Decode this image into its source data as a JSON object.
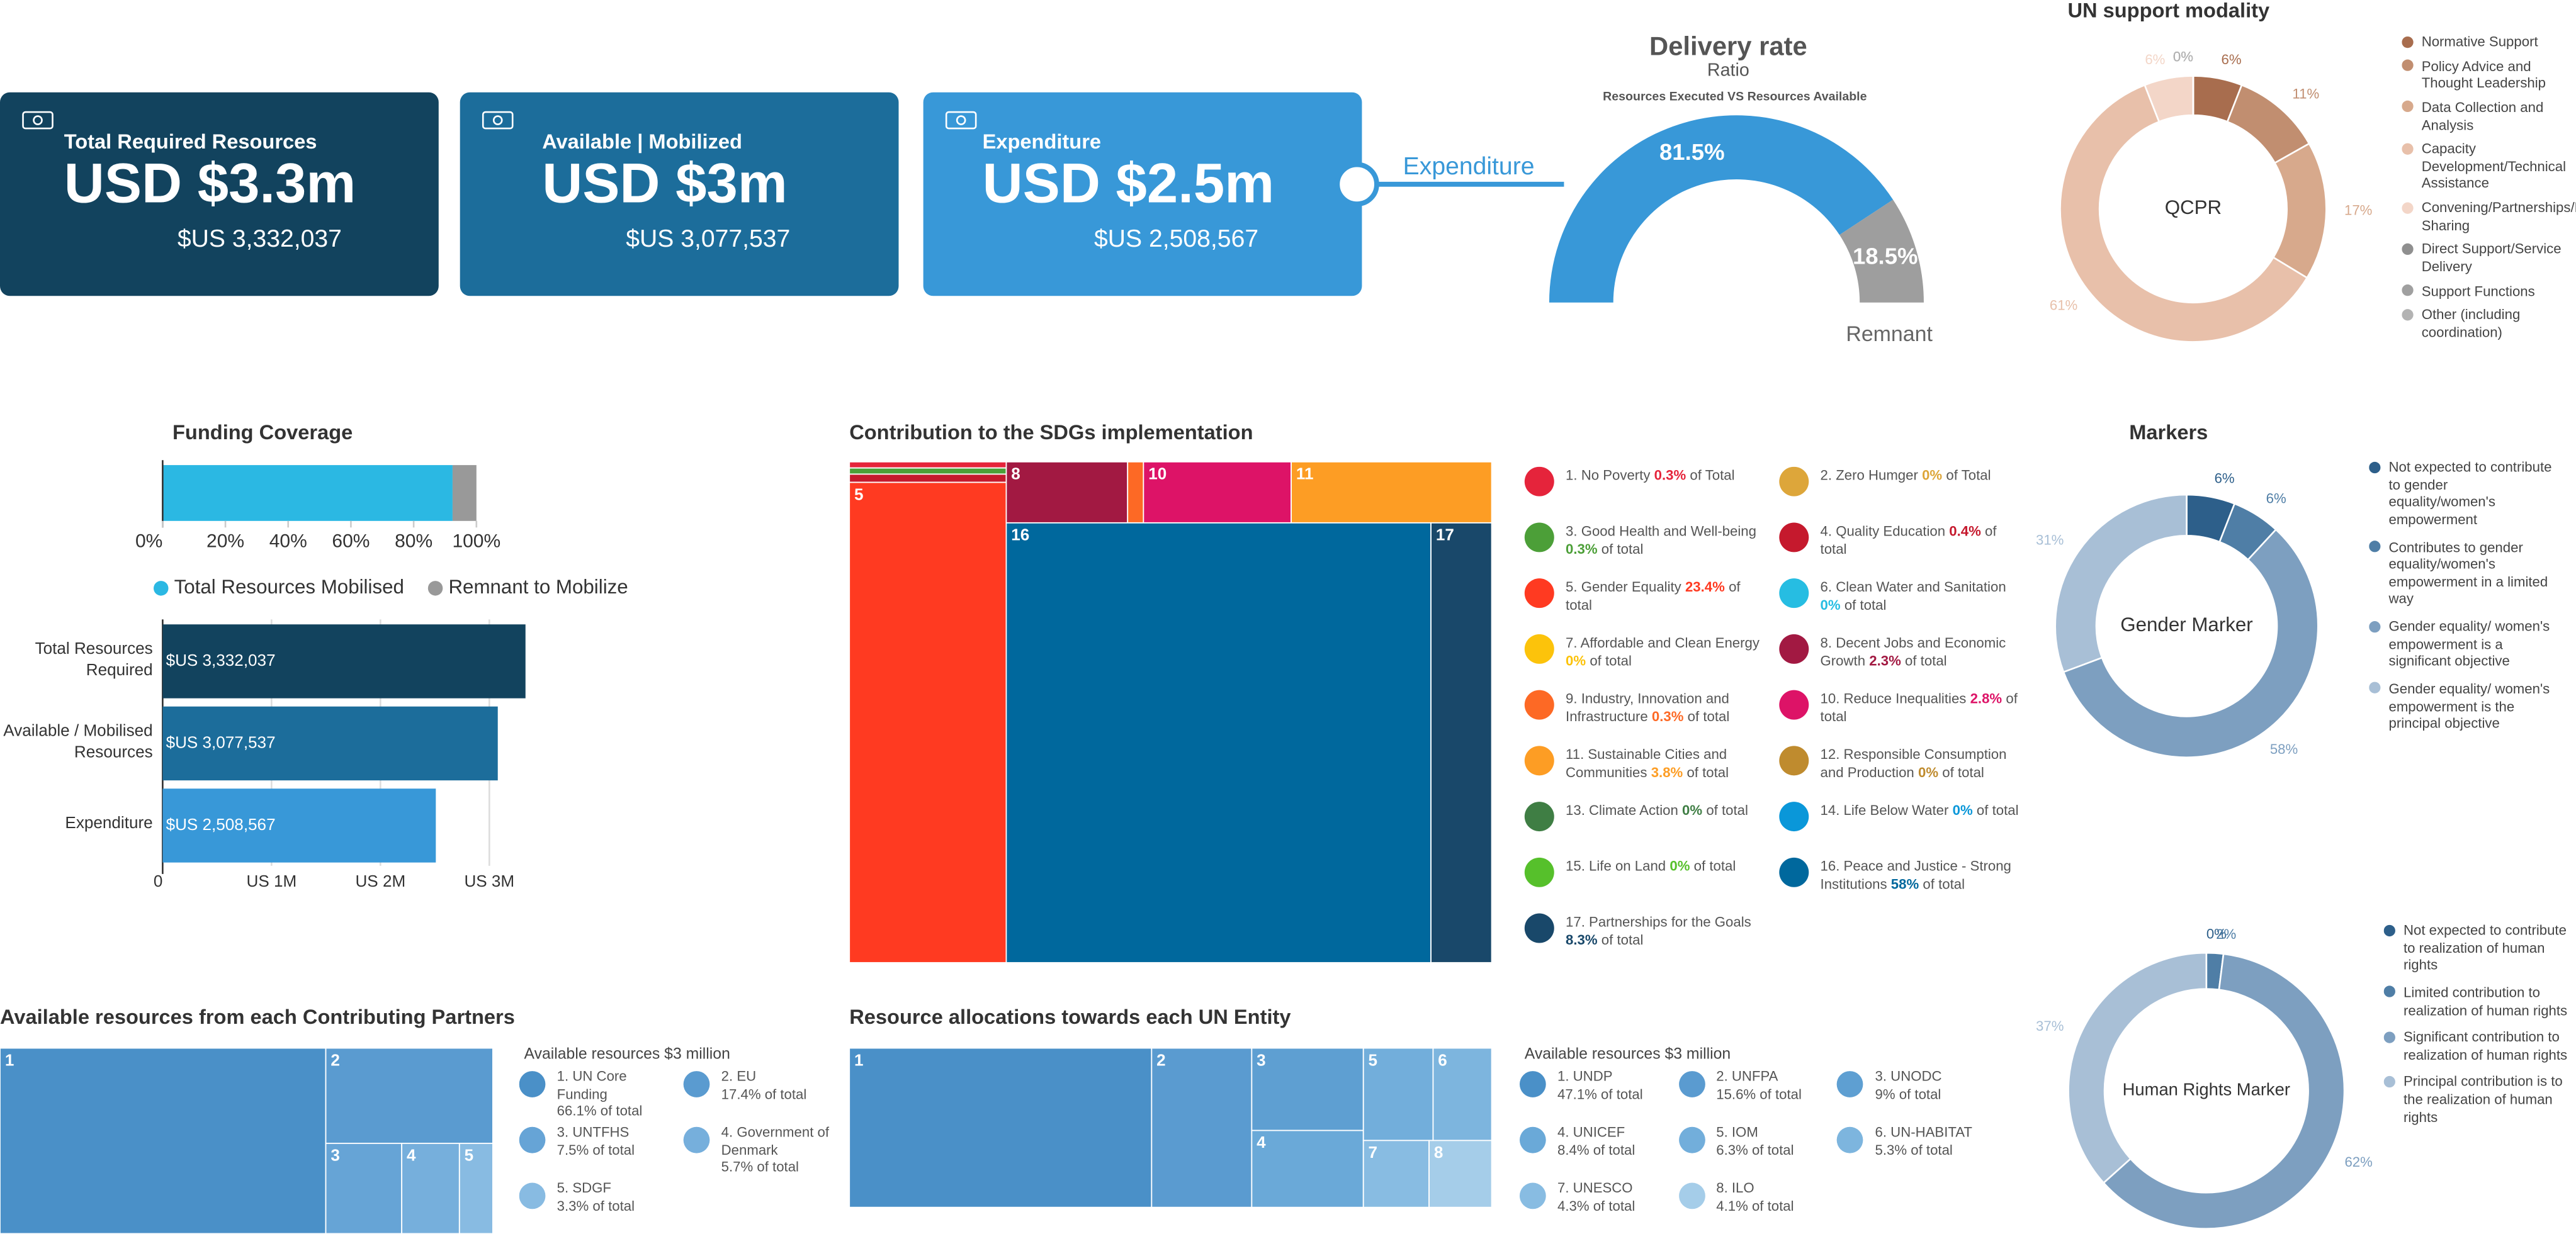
{
  "cards": [
    {
      "title": "Total Required Resources",
      "headline": "USD $3.3m",
      "amount": "$US 3,332,037"
    },
    {
      "title": "Available | Mobilized",
      "headline": "USD $3m",
      "amount": "$US 3,077,537"
    },
    {
      "title": "Expenditure",
      "headline": "USD $2.5m",
      "amount": "$US 2,508,567"
    }
  ],
  "chart_data": [
    {
      "type": "gauge",
      "title": "Delivery rate",
      "subtitle": "Ratio",
      "note": "Resources Executed VS Resources Available",
      "categories": [
        "Expenditure",
        "Remnant"
      ],
      "values": [
        81.5,
        18.5
      ],
      "value_labels": [
        "81.5%",
        "18.5%"
      ],
      "colors": [
        "#3898d8",
        "#9e9e9e"
      ]
    },
    {
      "type": "donut",
      "title": "UN support modality",
      "center_label": "QCPR",
      "categories": [
        "Normative Support",
        "Policy Advice and Thought Leadership",
        "Data Collection and Analysis",
        "Capacity Development/Technical Assistance",
        "Convening/Partnerships/Knowledge Sharing",
        "Direct Support/Service Delivery",
        "Support Functions",
        "Other (including coordination)"
      ],
      "values": [
        6,
        11,
        17,
        61,
        6,
        0,
        0,
        0
      ],
      "value_labels": [
        "6%",
        "11%",
        "17%",
        "61%",
        "6%",
        "0%",
        "0%",
        "0%"
      ],
      "colors": [
        "#a86d4e",
        "#c18e70",
        "#d7a98c",
        "#e8c0aa",
        "#f3d6c8",
        "#8f8f8f",
        "#a0a0a0",
        "#b3b3b3"
      ]
    },
    {
      "type": "stacked_bar",
      "title": "Funding Coverage",
      "series": [
        {
          "name": "Total Resources Mobilised",
          "color": "#2bb8e3",
          "values": [
            92.4
          ]
        },
        {
          "name": "Remnant to Mobilize",
          "color": "#999999",
          "values": [
            7.6
          ]
        }
      ],
      "xlim": [
        0,
        100
      ],
      "xticks": [
        {
          "value": 0,
          "label": "0%"
        },
        {
          "value": 20,
          "label": "20%"
        },
        {
          "value": 40,
          "label": "40%"
        },
        {
          "value": 60,
          "label": "60%"
        },
        {
          "value": 80,
          "label": "80%"
        },
        {
          "value": 100,
          "label": "100%"
        }
      ]
    },
    {
      "type": "hbar",
      "categories": [
        "Total Resources Required",
        "Available / Mobilised Resources",
        "Expenditure"
      ],
      "values": [
        3332037,
        3077537,
        2508567
      ],
      "value_labels": [
        "$US 3,332,037",
        "$US 3,077,537",
        "$US 2,508,567"
      ],
      "colors": [
        "#12435e",
        "#1c6d9b",
        "#3898d8"
      ],
      "xlim": [
        0,
        3500000
      ],
      "xticks": [
        0,
        {
          "value": 1000000,
          "label": "US 1M"
        },
        {
          "value": 2000000,
          "label": "US 2M"
        },
        {
          "value": 3000000,
          "label": "US 3M"
        }
      ],
      "grid": true
    },
    {
      "type": "treemap",
      "title": "Contribution to the SDGs implementation",
      "categories": [
        "1. No Poverty",
        "2. Zero Humger",
        "3. Good Health and Well-being",
        "4. Quality Education",
        "5. Gender Equality",
        "6. Clean Water and Sanitation",
        "7. Affordable and Clean Energy",
        "8. Decent Jobs and Economic Growth",
        "9. Industry, Innovation and Infrastructure",
        "10. Reduce Inequalities",
        "11. Sustainable Cities and Communities",
        "12. Responsible Consumption and Production",
        "13. Climate Action",
        "14. Life Below Water",
        "15. Life on Land",
        "16. Peace and Justice - Strong Institutions",
        "17. Partnerships for the Goals"
      ],
      "values": [
        0.3,
        0,
        0.3,
        0.4,
        23.4,
        0,
        0,
        2.3,
        0.3,
        2.8,
        3.8,
        0,
        0,
        0,
        0,
        58,
        8.3
      ],
      "value_labels": [
        "0.3%",
        "0%",
        "0.3%",
        "0.4%",
        "23.4%",
        "0%",
        "0%",
        "2.3%",
        "0.3%",
        "2.8%",
        "3.8%",
        "0%",
        "0%",
        "0%",
        "0%",
        "58%",
        "8.3%"
      ],
      "suffixes": [
        "of Total",
        "of Total",
        "of total",
        "of total",
        "of total",
        "of total",
        "of total",
        "of total",
        "of total",
        "of total",
        "of total",
        "of total",
        "of total",
        "of total",
        "of total",
        "of total",
        "of total"
      ],
      "box_labels": [
        null,
        null,
        null,
        null,
        "5",
        null,
        null,
        "8",
        null,
        "10",
        "11",
        null,
        null,
        null,
        null,
        "16",
        "17"
      ],
      "colors": [
        "#e5243b",
        "#dda63a",
        "#4c9f38",
        "#c5192d",
        "#ff3a21",
        "#26bde2",
        "#fcc30b",
        "#a21942",
        "#fd6925",
        "#dd1367",
        "#fd9d24",
        "#bf8b2e",
        "#3f7e44",
        "#0a97d9",
        "#56c02b",
        "#00689d",
        "#19486a"
      ]
    },
    {
      "type": "donut",
      "title": "Markers",
      "center_label": "Gender Marker",
      "categories": [
        "Not expected to contribute to gender equality/women's empowerment",
        "Contributes to gender equality/women's empowerment in a limited way",
        "Gender equality/ women's empowerment is a significant objective",
        "Gender equality/ women's empowerment is the principal objective"
      ],
      "values": [
        6,
        6,
        58,
        31
      ],
      "value_labels": [
        "6%",
        "6%",
        "58%",
        "31%"
      ],
      "colors": [
        "#2d5f8a",
        "#4f7ea6",
        "#7d9fc0",
        "#a8bfd6"
      ]
    },
    {
      "type": "donut",
      "center_label": "Human Rights Marker",
      "categories": [
        "Not expected to contribute to realization of human rights",
        "Limited contribution to realization of human rights",
        "Significant contribution to realization of human rights",
        "Principal contribution is to the realization of human rights"
      ],
      "values": [
        0,
        2,
        62,
        37
      ],
      "value_labels": [
        "0%",
        "2%",
        "62%",
        "37%"
      ],
      "colors": [
        "#2d5f8a",
        "#4f7ea6",
        "#7d9fc0",
        "#a8bfd6"
      ]
    },
    {
      "type": "treemap",
      "title": "Available resources from each Contributing Partners",
      "subtitle": "Available resources $3 million",
      "categories": [
        "1. UN Core Funding",
        "2. EU",
        "3. UNTFHS",
        "4. Government of Denmark",
        "5. SDGF"
      ],
      "values": [
        66.1,
        17.4,
        7.5,
        5.7,
        3.3
      ],
      "value_labels": [
        "66.1% of total",
        "17.4% of total",
        "7.5% of total",
        "5.7% of total",
        "3.3% of total"
      ],
      "box_labels": [
        "1",
        "2",
        "3",
        "4",
        "5"
      ],
      "colors": [
        "#4a90c8",
        "#5a9bd0",
        "#66a4d6",
        "#76afdc",
        "#88bbe2"
      ]
    },
    {
      "type": "treemap",
      "title": "Resource allocations towards each UN Entity",
      "subtitle": "Available resources $3 million",
      "categories": [
        "1. UNDP",
        "2. UNFPA",
        "3. UNODC",
        "4. UNICEF",
        "5. IOM",
        "6. UN-HABITAT",
        "7. UNESCO",
        "8. ILO"
      ],
      "values": [
        47.1,
        15.6,
        9,
        8.4,
        6.3,
        5.3,
        4.3,
        4.1
      ],
      "value_labels": [
        "47.1% of total",
        "15.6% of total",
        "9% of total",
        "8.4% of total",
        "6.3% of total",
        "5.3% of total",
        "4.3% of total",
        "4.1% of total"
      ],
      "box_labels": [
        "1",
        "2",
        "3",
        "4",
        "5",
        "6",
        "7",
        "8"
      ],
      "colors": [
        "#4a90c8",
        "#5a9bd0",
        "#5e9fd2",
        "#6aa9d8",
        "#72aedb",
        "#7db5de",
        "#88bce2",
        "#a5cde9"
      ]
    }
  ]
}
